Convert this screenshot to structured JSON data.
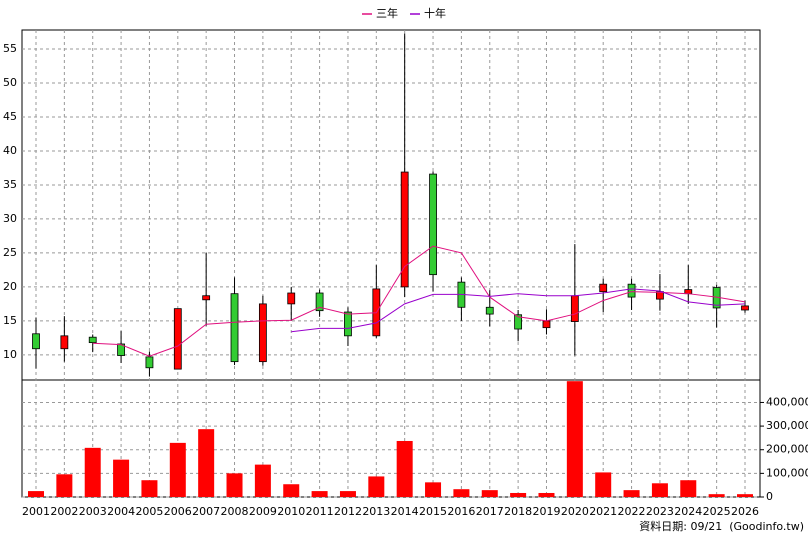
{
  "chart_data": {
    "type": "candlestick",
    "categories": [
      "2001",
      "2002",
      "2003",
      "2004",
      "2005",
      "2006",
      "2007",
      "2008",
      "2009",
      "2010",
      "2011",
      "2012",
      "2013",
      "2014",
      "2015",
      "2016",
      "2017",
      "2018",
      "2019",
      "2020",
      "2021",
      "2022",
      "2023",
      "2024",
      "2025",
      "2026"
    ],
    "open": [
      13.1,
      10.9,
      12.6,
      11.6,
      9.7,
      7.9,
      18.1,
      19.0,
      9.0,
      17.5,
      19.1,
      16.3,
      12.8,
      20.0,
      36.6,
      20.7,
      17.0,
      15.9,
      14.0,
      14.9,
      19.3,
      20.4,
      18.2,
      19.0,
      19.9,
      16.6
    ],
    "high": [
      15.5,
      15.7,
      13.0,
      13.5,
      10.5,
      16.8,
      25.0,
      21.4,
      18.7,
      20.0,
      19.6,
      17.0,
      23.2,
      57.3,
      37.0,
      21.4,
      19.5,
      16.6,
      16.7,
      26.3,
      21.2,
      21.2,
      21.9,
      23.2,
      20.3,
      18.0
    ],
    "low": [
      8.0,
      9.0,
      10.4,
      8.8,
      6.8,
      7.9,
      14.3,
      8.5,
      8.4,
      15.0,
      15.6,
      11.3,
      12.5,
      18.5,
      19.3,
      15.0,
      14.2,
      12.0,
      13.0,
      9.9,
      16.3,
      16.6,
      16.5,
      17.5,
      14.0,
      16.2
    ],
    "close": [
      10.9,
      12.8,
      11.8,
      9.9,
      8.1,
      16.8,
      18.7,
      9.0,
      17.5,
      19.1,
      16.5,
      12.8,
      19.7,
      36.9,
      21.8,
      17.0,
      16.0,
      13.8,
      15.0,
      18.7,
      20.4,
      18.5,
      19.3,
      19.6,
      16.9,
      17.2
    ],
    "up_color": "#ff0000",
    "down_color": "#33cc33",
    "series": [
      {
        "name": "三年",
        "color": "#e0107f",
        "values": [
          null,
          null,
          11.7,
          11.5,
          9.8,
          11.3,
          14.5,
          14.8,
          15.0,
          15.1,
          17.0,
          16.0,
          16.2,
          23.0,
          26.0,
          25.0,
          18.5,
          15.6,
          15.0,
          16.0,
          18.0,
          19.3,
          19.2,
          19.0,
          18.5,
          17.8
        ]
      },
      {
        "name": "十年",
        "color": "#9900cc",
        "values": [
          null,
          null,
          null,
          null,
          null,
          null,
          null,
          null,
          null,
          13.4,
          13.9,
          13.9,
          14.7,
          17.5,
          18.9,
          18.9,
          18.6,
          19.0,
          18.7,
          18.7,
          19.1,
          19.7,
          19.4,
          17.8,
          17.3,
          17.5
        ]
      }
    ],
    "ylim": [
      6.3,
      57.8
    ],
    "yticks": [
      10,
      15,
      20,
      25,
      30,
      35,
      40,
      45,
      50,
      55
    ],
    "grid": true,
    "volume": {
      "color": "#ff0000",
      "values": [
        25000,
        96000,
        208000,
        158000,
        71000,
        229000,
        287000,
        100000,
        137000,
        54000,
        25000,
        25000,
        87000,
        237000,
        62000,
        33000,
        29000,
        17000,
        17000,
        490000,
        104000,
        29000,
        58000,
        71000,
        12000,
        12000
      ],
      "ylim": [
        0,
        495000
      ],
      "yticks": [
        0,
        {
          "value": 100000,
          "label": "100,000"
        },
        {
          "value": 200000,
          "label": "200,000"
        },
        {
          "value": 300000,
          "label": "300,000"
        },
        {
          "value": 400000,
          "label": "400,000"
        }
      ]
    },
    "footnote": "資料日期: 09/21  (Goodinfo.tw)"
  }
}
